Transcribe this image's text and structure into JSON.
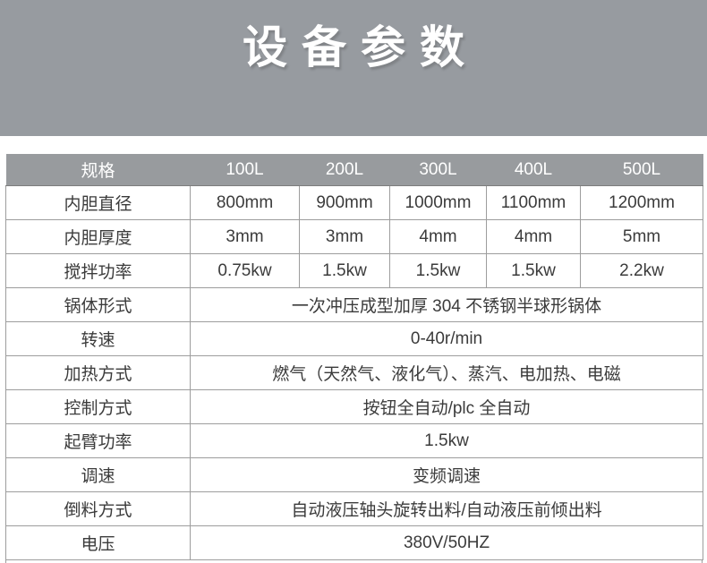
{
  "banner": {
    "title": "设备参数"
  },
  "table": {
    "header": {
      "label": "规格",
      "columns": [
        "100L",
        "200L",
        "300L",
        "400L",
        "500L"
      ]
    },
    "rows": [
      {
        "label": "内胆直径",
        "values": [
          "800mm",
          "900mm",
          "1000mm",
          "1100mm",
          "1200mm"
        ]
      },
      {
        "label": "内胆厚度",
        "values": [
          "3mm",
          "3mm",
          "4mm",
          "4mm",
          "5mm"
        ]
      },
      {
        "label": "搅拌功率",
        "values": [
          "0.75kw",
          "1.5kw",
          "1.5kw",
          "1.5kw",
          "2.2kw"
        ]
      },
      {
        "label": "锅体形式",
        "span": "一次冲压成型加厚 304 不锈钢半球形锅体"
      },
      {
        "label": "转速",
        "span": "0-40r/min"
      },
      {
        "label": "加热方式",
        "span": "燃气（天然气、液化气）、蒸汽、电加热、电磁"
      },
      {
        "label": "控制方式",
        "span": "按钮全自动/plc 全自动"
      },
      {
        "label": "起臂功率",
        "span": "1.5kw"
      },
      {
        "label": "调速",
        "span": "变频调速"
      },
      {
        "label": "倒料方式",
        "span": "自动液压轴头旋转出料/自动液压前倾出料"
      },
      {
        "label": "电压",
        "span": "380V/50HZ"
      }
    ]
  },
  "colors": {
    "banner_bg": "#979ba0",
    "header_row_bg": "#989b9e",
    "body_text": "#3b3b3b",
    "border": "#9d9d9d",
    "title_text": "#ffffff"
  }
}
